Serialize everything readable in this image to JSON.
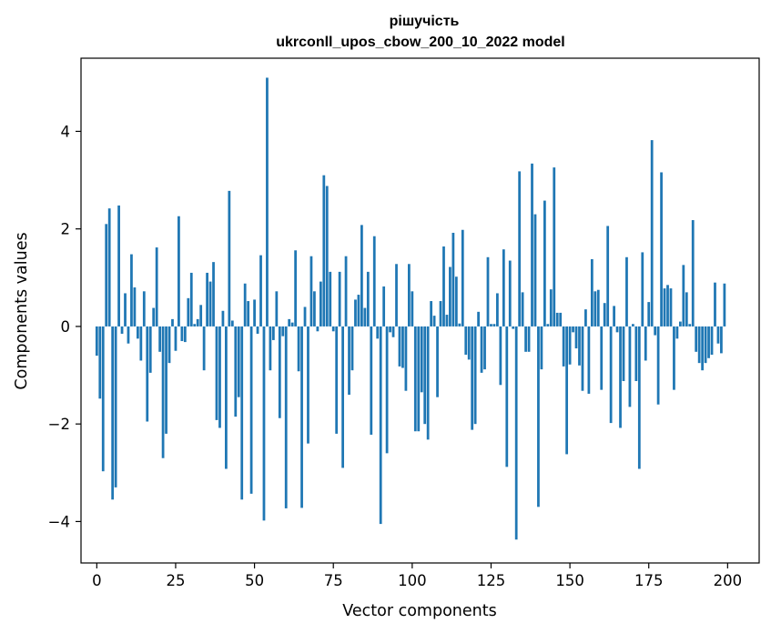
{
  "chart_data": {
    "type": "bar",
    "title": "рішучість",
    "subtitle": "ukrconll_upos_cbow_200_10_2022 model",
    "xlabel": "Vector components",
    "ylabel": "Components values",
    "xlim": [
      -5,
      210
    ],
    "ylim": [
      -4.85,
      5.5
    ],
    "xticks": [
      0,
      25,
      50,
      75,
      100,
      125,
      150,
      175,
      200
    ],
    "yticks": [
      -4,
      -2,
      0,
      2,
      4
    ],
    "xtick_labels": [
      "0",
      "25",
      "50",
      "75",
      "100",
      "125",
      "150",
      "175",
      "200"
    ],
    "ytick_labels": [
      "−4",
      "−2",
      "0",
      "2",
      "4"
    ],
    "bar_color": "#1f77b4",
    "grid": false,
    "values": [
      -0.6,
      -1.48,
      -2.97,
      2.1,
      2.42,
      -3.55,
      -3.3,
      2.48,
      -0.15,
      0.68,
      -0.35,
      1.48,
      0.8,
      -0.25,
      -0.7,
      0.72,
      -1.95,
      -0.95,
      0.38,
      1.62,
      -0.52,
      -2.7,
      -2.2,
      -0.75,
      0.15,
      -0.5,
      2.26,
      -0.3,
      -0.32,
      0.58,
      1.1,
      0.05,
      0.15,
      0.44,
      -0.9,
      1.1,
      0.92,
      1.32,
      -1.92,
      -2.08,
      0.32,
      -2.92,
      2.78,
      0.12,
      -1.85,
      -1.45,
      -3.55,
      0.88,
      0.52,
      -3.43,
      0.55,
      -0.15,
      1.46,
      -3.98,
      5.1,
      -0.9,
      -0.28,
      0.72,
      -1.88,
      -0.2,
      -3.73,
      0.15,
      0.08,
      1.56,
      -0.92,
      -3.72,
      0.4,
      -2.4,
      1.44,
      0.72,
      -0.1,
      0.92,
      3.1,
      2.88,
      1.12,
      -0.1,
      -2.2,
      1.12,
      -2.9,
      1.44,
      -1.4,
      -0.9,
      0.55,
      0.65,
      2.08,
      0.38,
      1.12,
      -2.22,
      1.85,
      -0.25,
      -4.05,
      0.82,
      -2.6,
      -0.12,
      -0.22,
      1.28,
      -0.82,
      -0.85,
      -1.32,
      1.28,
      0.72,
      -2.15,
      -2.15,
      -1.35,
      -2.0,
      -2.32,
      0.52,
      0.22,
      -1.45,
      0.52,
      1.64,
      0.24,
      1.22,
      1.92,
      1.02,
      0.06,
      1.98,
      -0.58,
      -0.68,
      -2.12,
      -2.0,
      0.3,
      -0.95,
      -0.88,
      1.42,
      0.05,
      0.05,
      0.68,
      -1.2,
      1.58,
      -2.88,
      1.35,
      -0.05,
      -4.37,
      3.18,
      0.7,
      -0.52,
      -0.52,
      3.34,
      2.3,
      -3.7,
      -0.88,
      2.58,
      0.05,
      0.76,
      3.26,
      0.28,
      0.28,
      -0.82,
      -2.62,
      -0.78,
      -0.12,
      -0.45,
      -0.8,
      -1.32,
      0.35,
      -1.38,
      1.38,
      0.72,
      0.75,
      -1.3,
      0.48,
      2.06,
      -1.98,
      0.42,
      -0.12,
      -2.08,
      -1.12,
      1.42,
      -1.65,
      0.05,
      -1.12,
      -2.92,
      1.52,
      -0.7,
      0.5,
      3.82,
      -0.18,
      -1.6,
      3.16,
      0.78,
      0.85,
      0.78,
      -1.3,
      -0.25,
      0.1,
      1.26,
      0.7,
      0.05,
      2.18,
      -0.52,
      -0.75,
      -0.9,
      -0.75,
      -0.65,
      -0.58,
      0.9,
      -0.35,
      -0.55,
      0.88
    ]
  }
}
